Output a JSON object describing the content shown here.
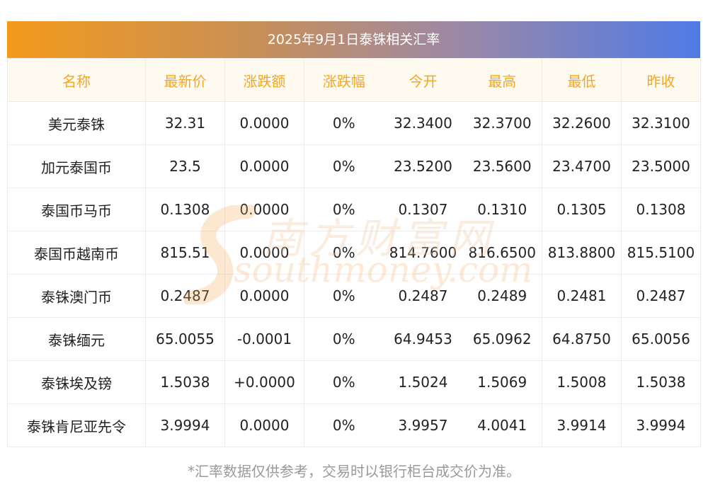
{
  "title": "2025年9月1日泰铢相关汇率",
  "columns": [
    "名称",
    "最新价",
    "涨跌额",
    "涨跌幅",
    "今开",
    "最高",
    "最低",
    "昨收"
  ],
  "rows": [
    [
      "美元泰铢",
      "32.31",
      "0.0000",
      "0%",
      "32.3400",
      "32.3700",
      "32.2600",
      "32.3100"
    ],
    [
      "加元泰国币",
      "23.5",
      "0.0000",
      "0%",
      "23.5200",
      "23.5600",
      "23.4700",
      "23.5000"
    ],
    [
      "泰国币马币",
      "0.1308",
      "0.0000",
      "0%",
      "0.1307",
      "0.1310",
      "0.1305",
      "0.1308"
    ],
    [
      "泰国币越南币",
      "815.51",
      "0.0000",
      "0%",
      "814.7600",
      "816.6500",
      "813.8800",
      "815.5100"
    ],
    [
      "泰铢澳门币",
      "0.2487",
      "0.0000",
      "0%",
      "0.2487",
      "0.2489",
      "0.2481",
      "0.2487"
    ],
    [
      "泰铢缅元",
      "65.0055",
      "-0.0001",
      "0%",
      "64.9453",
      "65.0962",
      "64.8750",
      "65.0056"
    ],
    [
      "泰铢埃及镑",
      "1.5038",
      "+0.0000",
      "0%",
      "1.5024",
      "1.5069",
      "1.5008",
      "1.5038"
    ],
    [
      "泰铢肯尼亚先令",
      "3.9994",
      "0.0000",
      "0%",
      "3.9957",
      "4.0041",
      "3.9914",
      "3.9994"
    ]
  ],
  "note": "*汇率数据仅供参考，交易时以银行柜台成交价为准。",
  "watermark": {
    "cn": "南方财富网",
    "en": "southmoney.com"
  },
  "colors": {
    "header_text": "#f5a623",
    "header_bg": "#fffaf0",
    "title_gradient_start": "#f39a1c",
    "title_gradient_end": "#4f7be6",
    "note_text": "#9a9a9a"
  }
}
